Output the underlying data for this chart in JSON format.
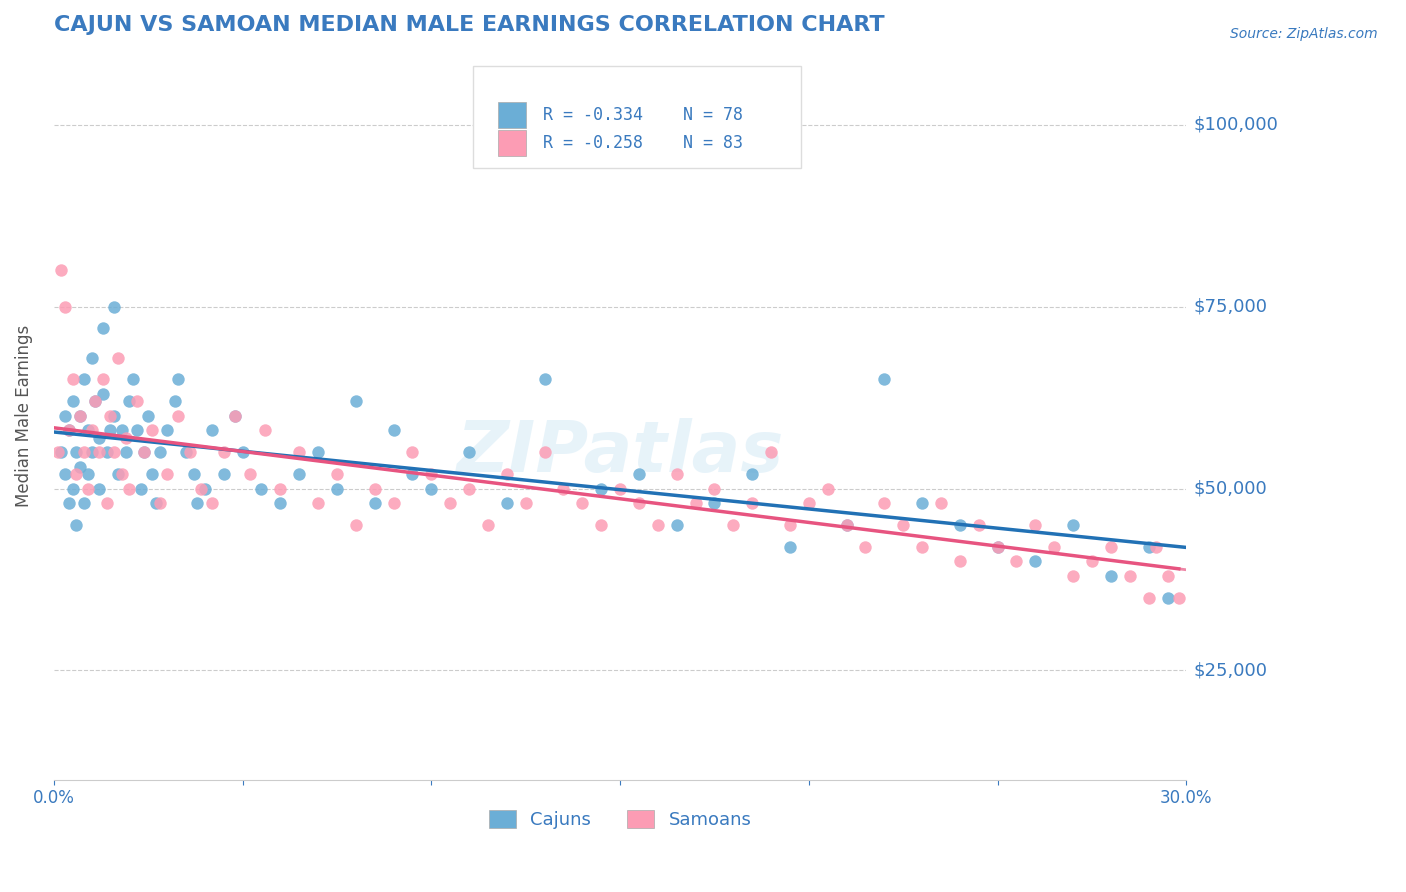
{
  "title": "CAJUN VS SAMOAN MEDIAN MALE EARNINGS CORRELATION CHART",
  "title_color": "#3a7abf",
  "source_text": "Source: ZipAtlas.com",
  "ylabel": "Median Male Earnings",
  "xlim": [
    0.0,
    0.3
  ],
  "ylim": [
    10000,
    110000
  ],
  "yticks": [
    25000,
    50000,
    75000,
    100000
  ],
  "ytick_labels": [
    "$25,000",
    "$50,000",
    "$75,000",
    "$100,000"
  ],
  "xticks": [
    0.0,
    0.05,
    0.1,
    0.15,
    0.2,
    0.25,
    0.3
  ],
  "xtick_labels": [
    "0.0%",
    "",
    "",
    "",
    "",
    "",
    "30.0%"
  ],
  "cajun_color": "#6baed6",
  "samoan_color": "#fc9cb4",
  "cajun_line_color": "#2171b5",
  "samoan_line_color": "#e75480",
  "R_cajun": -0.334,
  "N_cajun": 78,
  "R_samoan": -0.258,
  "N_samoan": 83,
  "watermark": "ZIPatlas",
  "background_color": "#ffffff",
  "grid_color": "#cccccc",
  "tick_color": "#3a7abf",
  "cajun_scatter_x": [
    0.002,
    0.003,
    0.003,
    0.004,
    0.004,
    0.005,
    0.005,
    0.006,
    0.006,
    0.007,
    0.007,
    0.008,
    0.008,
    0.009,
    0.009,
    0.01,
    0.01,
    0.011,
    0.012,
    0.012,
    0.013,
    0.013,
    0.014,
    0.015,
    0.016,
    0.016,
    0.017,
    0.018,
    0.019,
    0.02,
    0.021,
    0.022,
    0.023,
    0.024,
    0.025,
    0.026,
    0.027,
    0.028,
    0.03,
    0.032,
    0.033,
    0.035,
    0.037,
    0.038,
    0.04,
    0.042,
    0.045,
    0.048,
    0.05,
    0.055,
    0.06,
    0.065,
    0.07,
    0.075,
    0.08,
    0.085,
    0.09,
    0.095,
    0.1,
    0.11,
    0.12,
    0.13,
    0.145,
    0.155,
    0.165,
    0.175,
    0.185,
    0.195,
    0.21,
    0.22,
    0.23,
    0.24,
    0.25,
    0.26,
    0.27,
    0.28,
    0.29,
    0.295
  ],
  "cajun_scatter_y": [
    55000,
    60000,
    52000,
    58000,
    48000,
    62000,
    50000,
    55000,
    45000,
    60000,
    53000,
    65000,
    48000,
    58000,
    52000,
    68000,
    55000,
    62000,
    50000,
    57000,
    72000,
    63000,
    55000,
    58000,
    75000,
    60000,
    52000,
    58000,
    55000,
    62000,
    65000,
    58000,
    50000,
    55000,
    60000,
    52000,
    48000,
    55000,
    58000,
    62000,
    65000,
    55000,
    52000,
    48000,
    50000,
    58000,
    52000,
    60000,
    55000,
    50000,
    48000,
    52000,
    55000,
    50000,
    62000,
    48000,
    58000,
    52000,
    50000,
    55000,
    48000,
    65000,
    50000,
    52000,
    45000,
    48000,
    52000,
    42000,
    45000,
    65000,
    48000,
    45000,
    42000,
    40000,
    45000,
    38000,
    42000,
    35000
  ],
  "samoan_scatter_x": [
    0.001,
    0.002,
    0.003,
    0.004,
    0.005,
    0.006,
    0.007,
    0.008,
    0.009,
    0.01,
    0.011,
    0.012,
    0.013,
    0.014,
    0.015,
    0.016,
    0.017,
    0.018,
    0.019,
    0.02,
    0.022,
    0.024,
    0.026,
    0.028,
    0.03,
    0.033,
    0.036,
    0.039,
    0.042,
    0.045,
    0.048,
    0.052,
    0.056,
    0.06,
    0.065,
    0.07,
    0.075,
    0.08,
    0.085,
    0.09,
    0.095,
    0.1,
    0.105,
    0.11,
    0.115,
    0.12,
    0.125,
    0.13,
    0.135,
    0.14,
    0.145,
    0.15,
    0.155,
    0.16,
    0.165,
    0.17,
    0.175,
    0.18,
    0.185,
    0.19,
    0.195,
    0.2,
    0.205,
    0.21,
    0.215,
    0.22,
    0.225,
    0.23,
    0.235,
    0.24,
    0.245,
    0.25,
    0.255,
    0.26,
    0.265,
    0.27,
    0.275,
    0.28,
    0.285,
    0.29,
    0.292,
    0.295,
    0.298
  ],
  "samoan_scatter_y": [
    55000,
    80000,
    75000,
    58000,
    65000,
    52000,
    60000,
    55000,
    50000,
    58000,
    62000,
    55000,
    65000,
    48000,
    60000,
    55000,
    68000,
    52000,
    57000,
    50000,
    62000,
    55000,
    58000,
    48000,
    52000,
    60000,
    55000,
    50000,
    48000,
    55000,
    60000,
    52000,
    58000,
    50000,
    55000,
    48000,
    52000,
    45000,
    50000,
    48000,
    55000,
    52000,
    48000,
    50000,
    45000,
    52000,
    48000,
    55000,
    50000,
    48000,
    45000,
    50000,
    48000,
    45000,
    52000,
    48000,
    50000,
    45000,
    48000,
    55000,
    45000,
    48000,
    50000,
    45000,
    42000,
    48000,
    45000,
    42000,
    48000,
    40000,
    45000,
    42000,
    40000,
    45000,
    42000,
    38000,
    40000,
    42000,
    38000,
    35000,
    42000,
    38000,
    35000
  ]
}
